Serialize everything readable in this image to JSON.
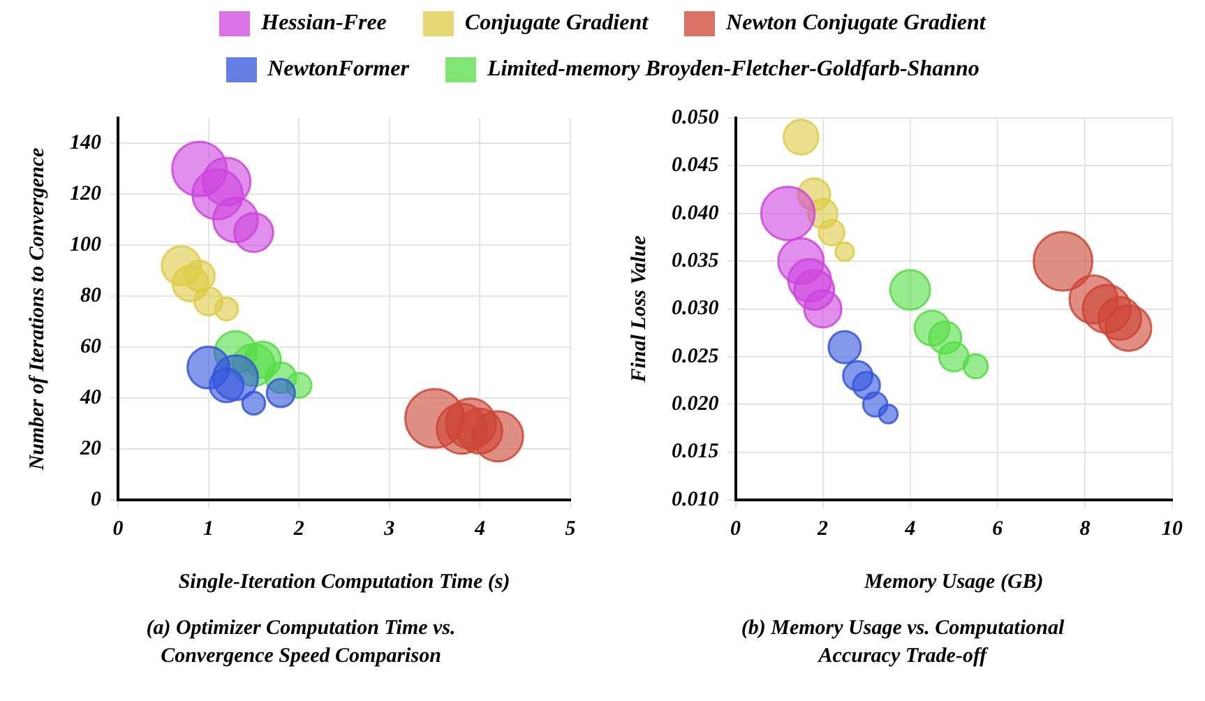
{
  "chart_data": [
    {
      "type": "bubble",
      "title": "(a) Optimizer Computation Time vs. Convergence Speed Comparison",
      "xlabel": "Single-Iteration Computation Time (s)",
      "ylabel": "Number of Iterations to Convergence",
      "xlim": [
        0,
        5
      ],
      "xticks": [
        0,
        1,
        2,
        3,
        4,
        5
      ],
      "ylim": [
        0,
        150
      ],
      "yticks": [
        0,
        20,
        40,
        60,
        80,
        100,
        120,
        140
      ],
      "grid": true,
      "legend": "top",
      "series": [
        {
          "name": "Hessian-Free",
          "color": "#cc44dd",
          "x": [
            0.9,
            1.2,
            1.1,
            1.3,
            1.5
          ],
          "values": [
            130,
            125,
            120,
            110,
            105
          ],
          "sizes": [
            0.86,
            0.66,
            0.73,
            0.58,
            0.44
          ]
        },
        {
          "name": "Conjugate Gradient",
          "color": "#ddcc44",
          "x": [
            0.7,
            0.9,
            0.8,
            1.0,
            1.2
          ],
          "values": [
            92,
            88,
            85,
            78,
            75
          ],
          "sizes": [
            0.44,
            0.27,
            0.37,
            0.23,
            0.15
          ]
        },
        {
          "name": "Newton Conjugate Gradient",
          "color": "#cc4433",
          "x": [
            3.5,
            3.8,
            3.9,
            4.0,
            4.2
          ],
          "values": [
            32,
            28,
            30,
            27,
            25
          ],
          "sizes": [
            1,
            0.73,
            0.73,
            0.58,
            0.73
          ]
        },
        {
          "name": "NewtonFormer",
          "color": "#3355dd",
          "x": [
            1.0,
            1.3,
            1.2,
            1.5,
            1.8
          ],
          "values": [
            52,
            48,
            45,
            38,
            42
          ],
          "sizes": [
            0.51,
            0.58,
            0.33,
            0.15,
            0.23
          ]
        },
        {
          "name": "Limited-memory Broyden-Fletcher-Goldfarb-Shanno",
          "color": "#55dd44",
          "x": [
            1.3,
            1.6,
            1.5,
            1.8,
            2.0
          ],
          "values": [
            58,
            55,
            53,
            48,
            45
          ],
          "sizes": [
            0.51,
            0.38,
            0.51,
            0.27,
            0.18
          ]
        }
      ]
    },
    {
      "type": "bubble",
      "title": "(b) Memory Usage vs. Computational Accuracy Trade-off",
      "xlabel": "Memory Usage (GB)",
      "ylabel": "Final Loss Value",
      "xlim": [
        0,
        10
      ],
      "xticks": [
        0,
        2,
        4,
        6,
        8,
        10
      ],
      "ylim": [
        0.01,
        0.05
      ],
      "yticks": [
        {
          "value": 0.01,
          "label": "0.010"
        },
        {
          "value": 0.015,
          "label": "0.015"
        },
        {
          "value": 0.02,
          "label": "0.020"
        },
        {
          "value": 0.025,
          "label": "0.025"
        },
        {
          "value": 0.03,
          "label": "0.030"
        },
        {
          "value": 0.035,
          "label": "0.035"
        },
        {
          "value": 0.04,
          "label": "0.040"
        },
        {
          "value": 0.045,
          "label": "0.045"
        },
        {
          "value": 0.05,
          "label": "0.050"
        }
      ],
      "grid": true,
      "series": [
        {
          "color": "#cc44dd",
          "x": [
            1.2,
            1.5,
            1.7,
            1.8,
            2.0
          ],
          "values": [
            0.04,
            0.035,
            0.033,
            0.032,
            0.03
          ],
          "sizes": [
            0.83,
            0.6,
            0.53,
            0.46,
            0.4
          ]
        },
        {
          "color": "#ddcc44",
          "x": [
            1.5,
            1.8,
            2.0,
            2.2,
            2.5
          ],
          "values": [
            0.048,
            0.042,
            0.04,
            0.038,
            0.036
          ],
          "sizes": [
            0.35,
            0.3,
            0.25,
            0.19,
            0.1
          ]
        },
        {
          "color": "#cc4433",
          "x": [
            7.5,
            8.2,
            8.5,
            8.8,
            9.0
          ],
          "values": [
            0.035,
            0.031,
            0.03,
            0.029,
            0.028
          ],
          "sizes": [
            1,
            0.67,
            0.67,
            0.53,
            0.6
          ]
        },
        {
          "color": "#3355dd",
          "x": [
            2.5,
            2.8,
            3.0,
            3.2,
            3.5
          ],
          "values": [
            0.026,
            0.023,
            0.022,
            0.02,
            0.019
          ],
          "sizes": [
            0.3,
            0.25,
            0.21,
            0.17,
            0.1
          ]
        },
        {
          "color": "#55dd44",
          "x": [
            4.0,
            4.5,
            4.8,
            5.0,
            5.5
          ],
          "values": [
            0.032,
            0.028,
            0.027,
            0.025,
            0.024
          ],
          "sizes": [
            0.46,
            0.35,
            0.3,
            0.25,
            0.17
          ]
        }
      ]
    }
  ]
}
